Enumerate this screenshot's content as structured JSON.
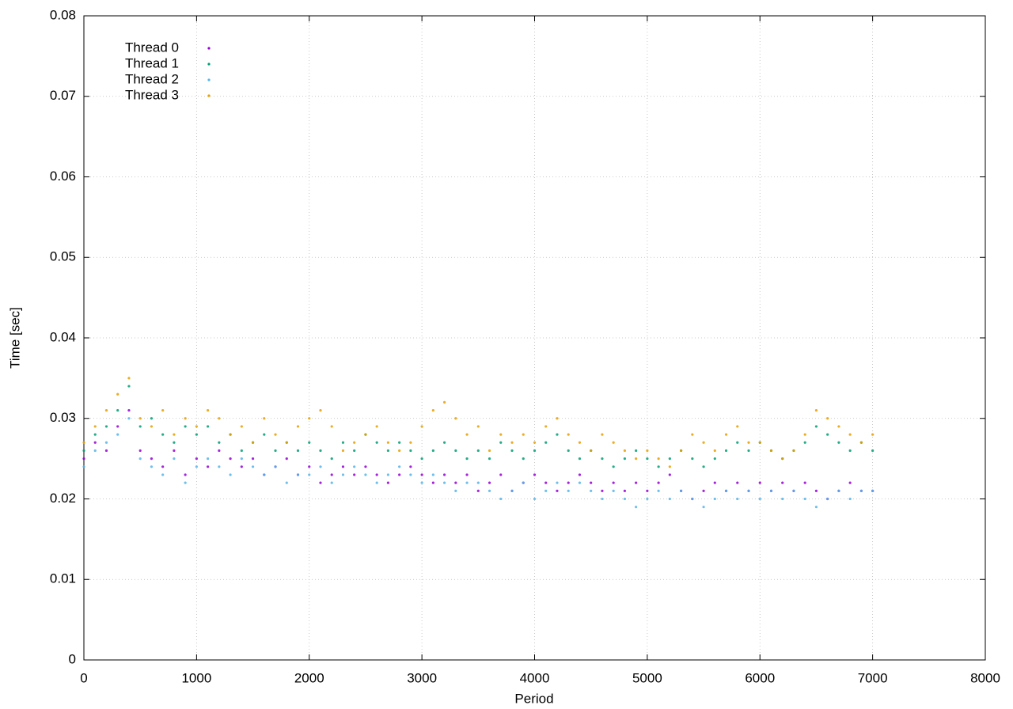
{
  "chart_data": {
    "type": "scatter",
    "x_label": "Period",
    "y_label": "Time [sec]",
    "x": [
      0,
      100,
      200,
      300,
      400,
      500,
      600,
      700,
      800,
      900,
      1000,
      1100,
      1200,
      1300,
      1400,
      1500,
      1600,
      1700,
      1800,
      1900,
      2000,
      2100,
      2200,
      2300,
      2400,
      2500,
      2600,
      2700,
      2800,
      2900,
      3000,
      3100,
      3200,
      3300,
      3400,
      3500,
      3600,
      3700,
      3800,
      3900,
      4000,
      4100,
      4200,
      4300,
      4400,
      4500,
      4600,
      4700,
      4800,
      4900,
      5000,
      5100,
      5200,
      5300,
      5400,
      5500,
      5600,
      5700,
      5800,
      5900,
      6000,
      6100,
      6200,
      6300,
      6400,
      6500,
      6600,
      6700,
      6800,
      6900,
      7000
    ],
    "series": [
      {
        "name": "Thread 0",
        "color": "#9400d3",
        "values": [
          0.025,
          0.027,
          0.026,
          0.029,
          0.031,
          0.026,
          0.025,
          0.024,
          0.026,
          0.023,
          0.025,
          0.024,
          0.026,
          0.025,
          0.024,
          0.025,
          0.023,
          0.024,
          0.025,
          0.023,
          0.024,
          0.022,
          0.023,
          0.024,
          0.023,
          0.024,
          0.023,
          0.022,
          0.023,
          0.024,
          0.023,
          0.022,
          0.023,
          0.022,
          0.023,
          0.021,
          0.022,
          0.023,
          0.021,
          0.022,
          0.023,
          0.022,
          0.021,
          0.022,
          0.023,
          0.022,
          0.021,
          0.022,
          0.021,
          0.022,
          0.021,
          0.022,
          0.023,
          0.021,
          0.02,
          0.021,
          0.022,
          0.021,
          0.022,
          0.021,
          0.022,
          0.021,
          0.022,
          0.021,
          0.022,
          0.021,
          0.02,
          0.021,
          0.022,
          0.021,
          0.021
        ]
      },
      {
        "name": "Thread 1",
        "color": "#009e73",
        "values": [
          0.026,
          0.028,
          0.029,
          0.031,
          0.034,
          0.029,
          0.03,
          0.028,
          0.027,
          0.029,
          0.028,
          0.029,
          0.027,
          0.028,
          0.026,
          0.027,
          0.028,
          0.026,
          0.027,
          0.026,
          0.027,
          0.026,
          0.025,
          0.027,
          0.026,
          0.028,
          0.027,
          0.026,
          0.027,
          0.026,
          0.025,
          0.026,
          0.027,
          0.026,
          0.025,
          0.026,
          0.025,
          0.027,
          0.026,
          0.025,
          0.026,
          0.027,
          0.028,
          0.026,
          0.025,
          0.026,
          0.025,
          0.024,
          0.025,
          0.026,
          0.025,
          0.024,
          0.025,
          0.026,
          0.025,
          0.024,
          0.025,
          0.026,
          0.027,
          0.026,
          0.027,
          0.026,
          0.025,
          0.026,
          0.027,
          0.029,
          0.028,
          0.027,
          0.026,
          0.027,
          0.026
        ]
      },
      {
        "name": "Thread 2",
        "color": "#56b4e9",
        "values": [
          0.024,
          0.026,
          0.027,
          0.028,
          0.03,
          0.025,
          0.024,
          0.023,
          0.025,
          0.022,
          0.024,
          0.025,
          0.024,
          0.023,
          0.025,
          0.024,
          0.023,
          0.024,
          0.022,
          0.023,
          0.023,
          0.024,
          0.022,
          0.023,
          0.024,
          0.023,
          0.022,
          0.023,
          0.024,
          0.023,
          0.022,
          0.023,
          0.022,
          0.021,
          0.022,
          0.022,
          0.021,
          0.02,
          0.021,
          0.022,
          0.02,
          0.021,
          0.022,
          0.021,
          0.022,
          0.021,
          0.02,
          0.021,
          0.02,
          0.019,
          0.02,
          0.021,
          0.02,
          0.021,
          0.02,
          0.019,
          0.02,
          0.021,
          0.02,
          0.021,
          0.02,
          0.021,
          0.02,
          0.021,
          0.02,
          0.019,
          0.02,
          0.021,
          0.02,
          0.021,
          0.021
        ]
      },
      {
        "name": "Thread 3",
        "color": "#e69f00",
        "values": [
          0.027,
          0.029,
          0.031,
          0.033,
          0.035,
          0.03,
          0.029,
          0.031,
          0.028,
          0.03,
          0.029,
          0.031,
          0.03,
          0.028,
          0.029,
          0.027,
          0.03,
          0.028,
          0.027,
          0.029,
          0.03,
          0.031,
          0.029,
          0.026,
          0.027,
          0.028,
          0.029,
          0.027,
          0.026,
          0.027,
          0.029,
          0.031,
          0.032,
          0.03,
          0.028,
          0.029,
          0.026,
          0.028,
          0.027,
          0.028,
          0.027,
          0.029,
          0.03,
          0.028,
          0.027,
          0.026,
          0.028,
          0.027,
          0.026,
          0.025,
          0.026,
          0.025,
          0.024,
          0.026,
          0.028,
          0.027,
          0.026,
          0.028,
          0.029,
          0.027,
          0.027,
          0.026,
          0.025,
          0.026,
          0.028,
          0.031,
          0.03,
          0.029,
          0.028,
          0.027,
          0.028
        ]
      }
    ],
    "xlim": [
      0,
      8000
    ],
    "xticks": [
      0,
      1000,
      2000,
      3000,
      4000,
      5000,
      6000,
      7000,
      8000
    ],
    "ylim": [
      0,
      0.08
    ],
    "yticks": [
      0,
      0.01,
      0.02,
      0.03,
      0.04,
      0.05,
      0.06,
      0.07,
      0.08
    ],
    "grid": true,
    "legend": "top-left"
  }
}
